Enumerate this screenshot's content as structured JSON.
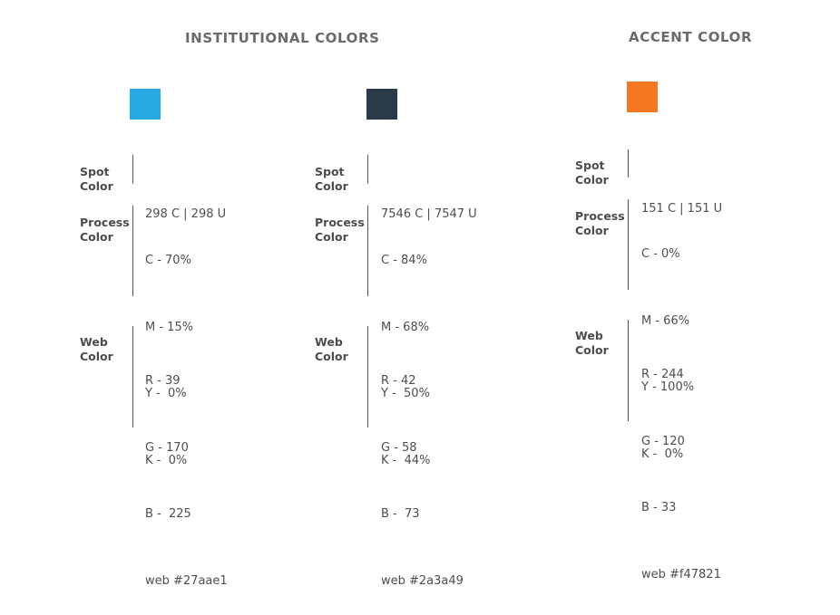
{
  "headings": {
    "institutional": "INSTITUTIONAL COLORS",
    "accent": "ACCENT COLOR"
  },
  "labels": {
    "spot": [
      "Spot",
      "Color"
    ],
    "process": [
      "Process",
      "Color"
    ],
    "web": [
      "Web",
      "Color"
    ]
  },
  "colors": [
    {
      "swatch": "#27aae1",
      "spot": "298 C | 298 U",
      "process": [
        "C - 70%",
        "M - 15%",
        "Y -  0%",
        "K -  0%"
      ],
      "web": [
        "R - 39",
        "G - 170",
        "B -  225",
        "web #27aae1"
      ]
    },
    {
      "swatch": "#2a3a49",
      "spot": "7546 C | 7547 U",
      "process": [
        "C - 84%",
        "M - 68%",
        "Y -  50%",
        "K -  44%"
      ],
      "web": [
        "R - 42",
        "G - 58",
        "B -  73",
        "web #2a3a49"
      ]
    },
    {
      "swatch": "#f47821",
      "spot": "151 C | 151 U",
      "process": [
        "C - 0%",
        "M - 66%",
        "Y - 100%",
        "K -  0%"
      ],
      "web": [
        "R - 244",
        "G - 120",
        "B - 33",
        "web #f47821"
      ]
    }
  ]
}
